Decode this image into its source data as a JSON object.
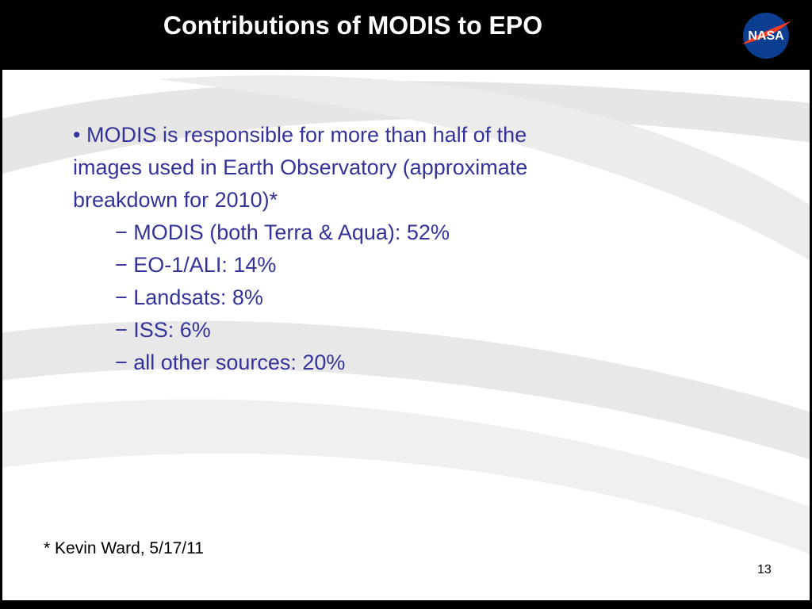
{
  "header": {
    "title": "Contributions of MODIS to EPO",
    "logo": "NASA"
  },
  "body": {
    "bullet_lines": [
      "• MODIS is responsible for more than half of the",
      "images used in Earth Observatory (approximate",
      "breakdown for 2010)*"
    ],
    "subitems": [
      "− MODIS (both Terra & Aqua): 52%",
      "− EO-1/ALI: 14%",
      "− Landsats: 8%",
      "− ISS: 6%",
      "− all other sources: 20%"
    ]
  },
  "footer": {
    "footnote": "* Kevin Ward, 5/17/11",
    "page_number": "13"
  }
}
